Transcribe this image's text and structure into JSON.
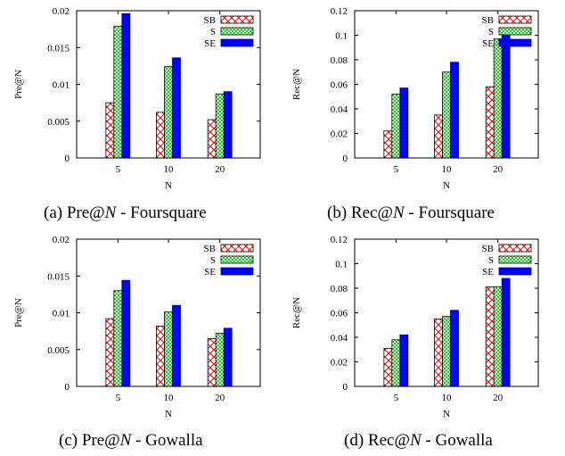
{
  "chart_data": [
    {
      "type": "bar",
      "ylabel": "Pre@N",
      "xlabel": "N",
      "categories": [
        "5",
        "10",
        "20"
      ],
      "ylim": [
        0,
        0.02
      ],
      "yticks": [
        "0",
        "0.005",
        "0.01",
        "0.015",
        "0.02"
      ],
      "ytick_values": [
        0,
        0.005,
        0.01,
        0.015,
        0.02
      ],
      "legend_position": "top-right",
      "series": [
        {
          "name": "SB",
          "values": [
            0.0075,
            0.0062,
            0.0052
          ],
          "color": "#ff0000",
          "fill": "crosshatch"
        },
        {
          "name": "S",
          "values": [
            0.0179,
            0.0124,
            0.0087
          ],
          "color": "#00c000",
          "fill": "checker"
        },
        {
          "name": "SE",
          "values": [
            0.0196,
            0.0136,
            0.009
          ],
          "color": "#0000ff",
          "fill": "solid"
        }
      ],
      "caption": {
        "label": "(a)",
        "metric": "Pre@",
        "var": "N",
        "dataset": " - Foursquare"
      }
    },
    {
      "type": "bar",
      "ylabel": "Rec@N",
      "xlabel": "N",
      "categories": [
        "5",
        "10",
        "20"
      ],
      "ylim": [
        0,
        0.12
      ],
      "yticks": [
        "0",
        "0.02",
        "0.04",
        "0.06",
        "0.08",
        "0.1",
        "0.12"
      ],
      "ytick_values": [
        0,
        0.02,
        0.04,
        0.06,
        0.08,
        0.1,
        0.12
      ],
      "legend_position": "top-right",
      "series": [
        {
          "name": "SB",
          "values": [
            0.022,
            0.035,
            0.058
          ],
          "color": "#ff0000",
          "fill": "crosshatch"
        },
        {
          "name": "S",
          "values": [
            0.052,
            0.07,
            0.097
          ],
          "color": "#00c000",
          "fill": "checker"
        },
        {
          "name": "SE",
          "values": [
            0.057,
            0.078,
            0.101
          ],
          "color": "#0000ff",
          "fill": "solid"
        }
      ],
      "caption": {
        "label": "(b)",
        "metric": "Rec@",
        "var": "N",
        "dataset": " - Foursquare"
      }
    },
    {
      "type": "bar",
      "ylabel": "Pre@N",
      "xlabel": "N",
      "categories": [
        "5",
        "10",
        "20"
      ],
      "ylim": [
        0,
        0.02
      ],
      "yticks": [
        "0",
        "0.005",
        "0.01",
        "0.015",
        "0.02"
      ],
      "ytick_values": [
        0,
        0.005,
        0.01,
        0.015,
        0.02
      ],
      "legend_position": "top-right",
      "series": [
        {
          "name": "SB",
          "values": [
            0.0092,
            0.0082,
            0.0065
          ],
          "color": "#ff0000",
          "fill": "crosshatch"
        },
        {
          "name": "S",
          "values": [
            0.013,
            0.0101,
            0.0072
          ],
          "color": "#00c000",
          "fill": "checker"
        },
        {
          "name": "SE",
          "values": [
            0.0144,
            0.011,
            0.0079
          ],
          "color": "#0000ff",
          "fill": "solid"
        }
      ],
      "caption": {
        "label": "(c)",
        "metric": "Pre@",
        "var": "N",
        "dataset": " - Gowalla"
      }
    },
    {
      "type": "bar",
      "ylabel": "Rec@N",
      "xlabel": "N",
      "categories": [
        "5",
        "10",
        "20"
      ],
      "ylim": [
        0,
        0.12
      ],
      "yticks": [
        "0",
        "0.02",
        "0.04",
        "0.06",
        "0.08",
        "0.1",
        "0.12"
      ],
      "ytick_values": [
        0,
        0.02,
        0.04,
        0.06,
        0.08,
        0.1,
        0.12
      ],
      "legend_position": "top-right",
      "series": [
        {
          "name": "SB",
          "values": [
            0.031,
            0.055,
            0.081
          ],
          "color": "#ff0000",
          "fill": "crosshatch"
        },
        {
          "name": "S",
          "values": [
            0.038,
            0.057,
            0.081
          ],
          "color": "#00c000",
          "fill": "checker"
        },
        {
          "name": "SE",
          "values": [
            0.042,
            0.062,
            0.088
          ],
          "color": "#0000ff",
          "fill": "solid"
        }
      ],
      "caption": {
        "label": "(d)",
        "metric": "Rec@",
        "var": "N",
        "dataset": " - Gowalla"
      }
    }
  ]
}
